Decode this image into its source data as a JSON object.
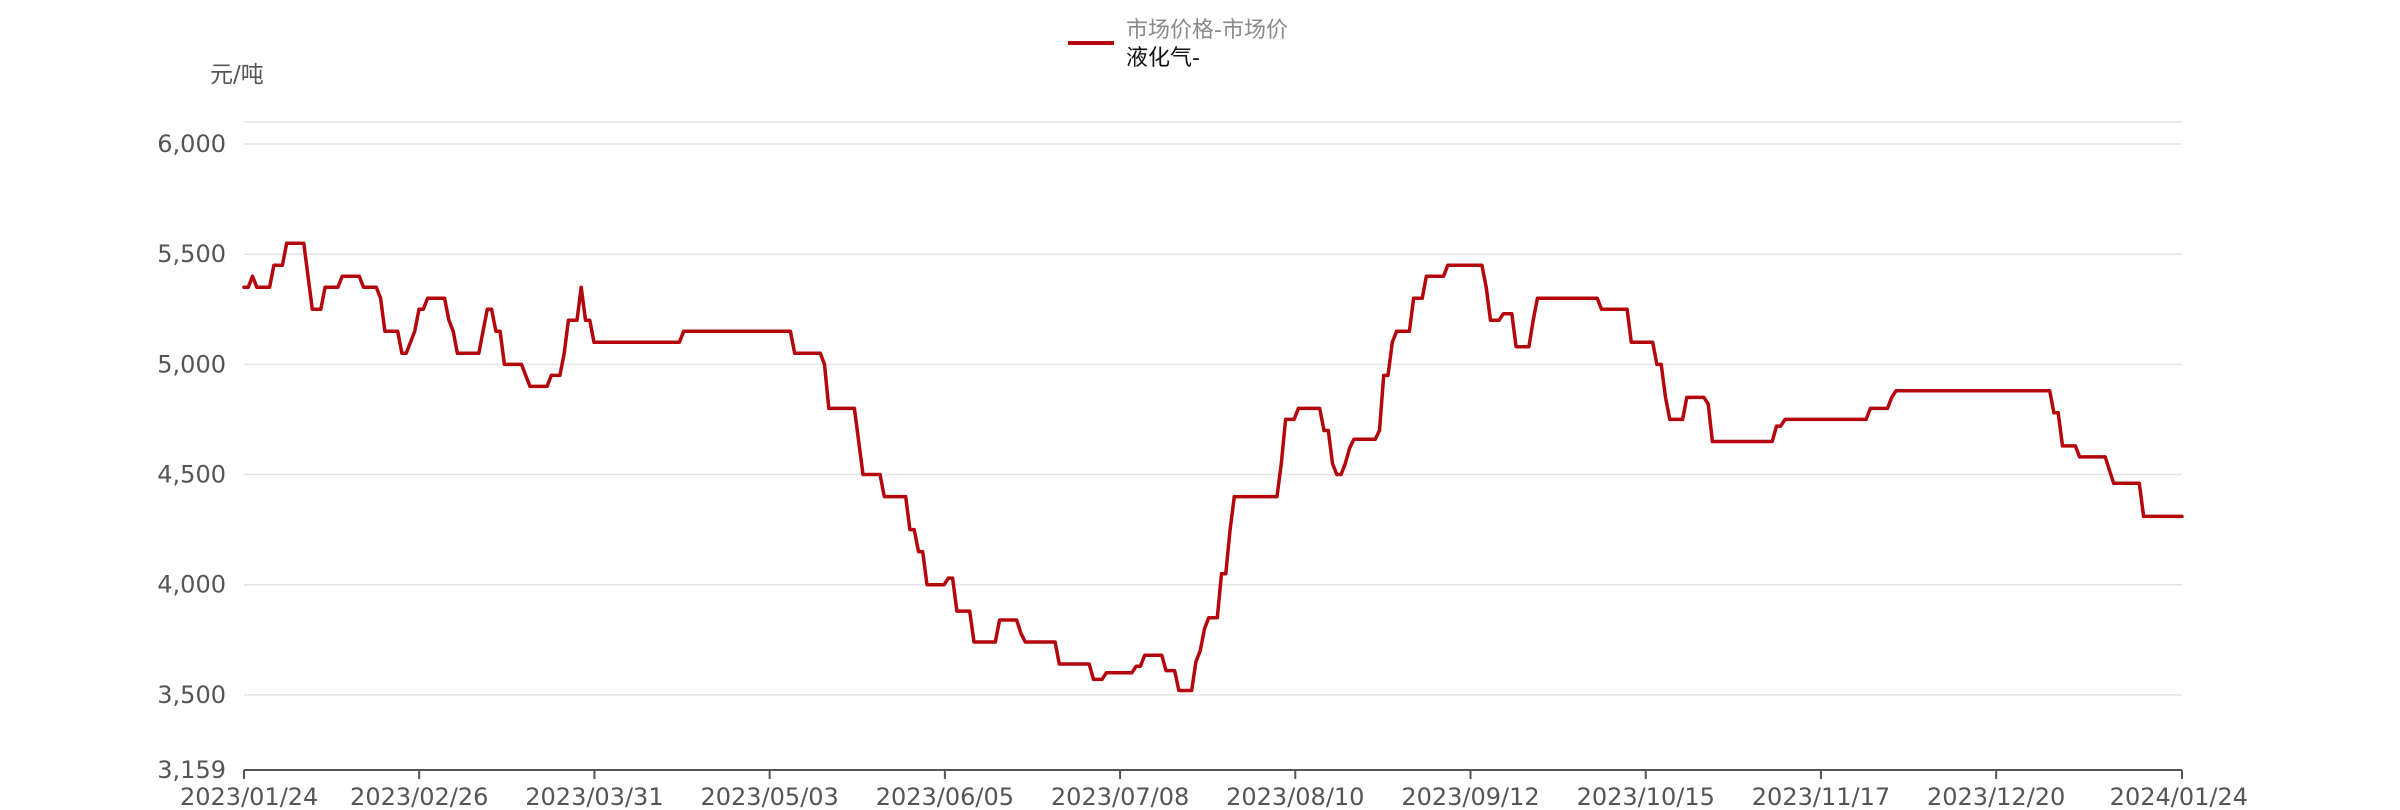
{
  "chart_data": {
    "type": "line",
    "unit_label": "元/吨",
    "legend": {
      "line1": "市场价格-市场价",
      "line2": "液化气-"
    },
    "series": [
      {
        "name": "市场价格-市场价 液化气-",
        "color": "#b3070d",
        "values": [
          5350,
          5350,
          5400,
          5350,
          5350,
          5350,
          5350,
          5450,
          5450,
          5450,
          5550,
          5550,
          5550,
          5550,
          5550,
          5400,
          5250,
          5250,
          5250,
          5350,
          5350,
          5350,
          5350,
          5400,
          5400,
          5400,
          5400,
          5400,
          5350,
          5350,
          5350,
          5350,
          5300,
          5150,
          5150,
          5150,
          5150,
          5050,
          5050,
          5100,
          5150,
          5250,
          5250,
          5300,
          5300,
          5300,
          5300,
          5300,
          5200,
          5150,
          5050,
          5050,
          5050,
          5050,
          5050,
          5050,
          5150,
          5250,
          5250,
          5150,
          5150,
          5000,
          5000,
          5000,
          5000,
          5000,
          4950,
          4900,
          4900,
          4900,
          4900,
          4900,
          4950,
          4950,
          4950,
          5050,
          5200,
          5200,
          5200,
          5350,
          5200,
          5200,
          5100,
          5100,
          5100,
          5100,
          5100,
          5100,
          5100,
          5100,
          5100,
          5100,
          5100,
          5100,
          5100,
          5100,
          5100,
          5100,
          5100,
          5100,
          5100,
          5100,
          5100,
          5150,
          5150,
          5150,
          5150,
          5150,
          5150,
          5150,
          5150,
          5150,
          5150,
          5150,
          5150,
          5150,
          5150,
          5150,
          5150,
          5150,
          5150,
          5150,
          5150,
          5150,
          5150,
          5150,
          5150,
          5150,
          5150,
          5050,
          5050,
          5050,
          5050,
          5050,
          5050,
          5050,
          5000,
          4800,
          4800,
          4800,
          4800,
          4800,
          4800,
          4800,
          4650,
          4500,
          4500,
          4500,
          4500,
          4500,
          4400,
          4400,
          4400,
          4400,
          4400,
          4400,
          4250,
          4250,
          4150,
          4150,
          4000,
          4000,
          4000,
          4000,
          4000,
          4030,
          4030,
          3880,
          3880,
          3880,
          3880,
          3740,
          3740,
          3740,
          3740,
          3740,
          3740,
          3840,
          3840,
          3840,
          3840,
          3840,
          3780,
          3740,
          3740,
          3740,
          3740,
          3740,
          3740,
          3740,
          3740,
          3640,
          3640,
          3640,
          3640,
          3640,
          3640,
          3640,
          3640,
          3570,
          3570,
          3570,
          3600,
          3600,
          3600,
          3600,
          3600,
          3600,
          3600,
          3630,
          3630,
          3680,
          3680,
          3680,
          3680,
          3680,
          3610,
          3610,
          3610,
          3520,
          3520,
          3520,
          3520,
          3650,
          3700,
          3800,
          3850,
          3850,
          3850,
          4050,
          4050,
          4250,
          4400,
          4400,
          4400,
          4400,
          4400,
          4400,
          4400,
          4400,
          4400,
          4400,
          4400,
          4550,
          4750,
          4750,
          4750,
          4800,
          4800,
          4800,
          4800,
          4800,
          4800,
          4700,
          4700,
          4550,
          4500,
          4500,
          4550,
          4620,
          4660,
          4660,
          4660,
          4660,
          4660,
          4660,
          4700,
          4950,
          4950,
          5100,
          5150,
          5150,
          5150,
          5150,
          5300,
          5300,
          5300,
          5400,
          5400,
          5400,
          5400,
          5400,
          5450,
          5450,
          5450,
          5450,
          5450,
          5450,
          5450,
          5450,
          5450,
          5350,
          5200,
          5200,
          5200,
          5230,
          5230,
          5230,
          5080,
          5080,
          5080,
          5080,
          5200,
          5300,
          5300,
          5300,
          5300,
          5300,
          5300,
          5300,
          5300,
          5300,
          5300,
          5300,
          5300,
          5300,
          5300,
          5300,
          5250,
          5250,
          5250,
          5250,
          5250,
          5250,
          5250,
          5100,
          5100,
          5100,
          5100,
          5100,
          5100,
          5000,
          5000,
          4850,
          4750,
          4750,
          4750,
          4750,
          4850,
          4850,
          4850,
          4850,
          4850,
          4820,
          4650,
          4650,
          4650,
          4650,
          4650,
          4650,
          4650,
          4650,
          4650,
          4650,
          4650,
          4650,
          4650,
          4650,
          4650,
          4720,
          4720,
          4750,
          4750,
          4750,
          4750,
          4750,
          4750,
          4750,
          4750,
          4750,
          4750,
          4750,
          4750,
          4750,
          4750,
          4750,
          4750,
          4750,
          4750,
          4750,
          4750,
          4800,
          4800,
          4800,
          4800,
          4800,
          4850,
          4880,
          4880,
          4880,
          4880,
          4880,
          4880,
          4880,
          4880,
          4880,
          4880,
          4880,
          4880,
          4880,
          4880,
          4880,
          4880,
          4880,
          4880,
          4880,
          4880,
          4880,
          4880,
          4880,
          4880,
          4880,
          4880,
          4880,
          4880,
          4880,
          4880,
          4880,
          4880,
          4880,
          4880,
          4880,
          4880,
          4880,
          4780,
          4780,
          4630,
          4630,
          4630,
          4630,
          4580,
          4580,
          4580,
          4580,
          4580,
          4580,
          4580,
          4520,
          4460,
          4460,
          4460,
          4460,
          4460,
          4460,
          4460,
          4310,
          4310,
          4310,
          4310,
          4310,
          4310,
          4310,
          4310,
          4310,
          4310
        ]
      }
    ],
    "x_start": "2023/01/24",
    "x_end": "2024/01/24",
    "x_tick_labels": [
      "2023/01/24",
      "2023/02/26",
      "2023/03/31",
      "2023/05/03",
      "2023/06/05",
      "2023/07/08",
      "2023/08/10",
      "2023/09/12",
      "2023/10/15",
      "2023/11/17",
      "2023/12/20",
      "2024/01/24"
    ],
    "y_ticks": [
      6000,
      5500,
      5000,
      4500,
      4000,
      3500
    ],
    "y_tick_labels": [
      "6,000",
      "5,500",
      "5,000",
      "4,500",
      "4,000",
      "3,500"
    ],
    "y_min_label": "3,159",
    "ylim": [
      3159,
      6100
    ],
    "grid": true
  }
}
